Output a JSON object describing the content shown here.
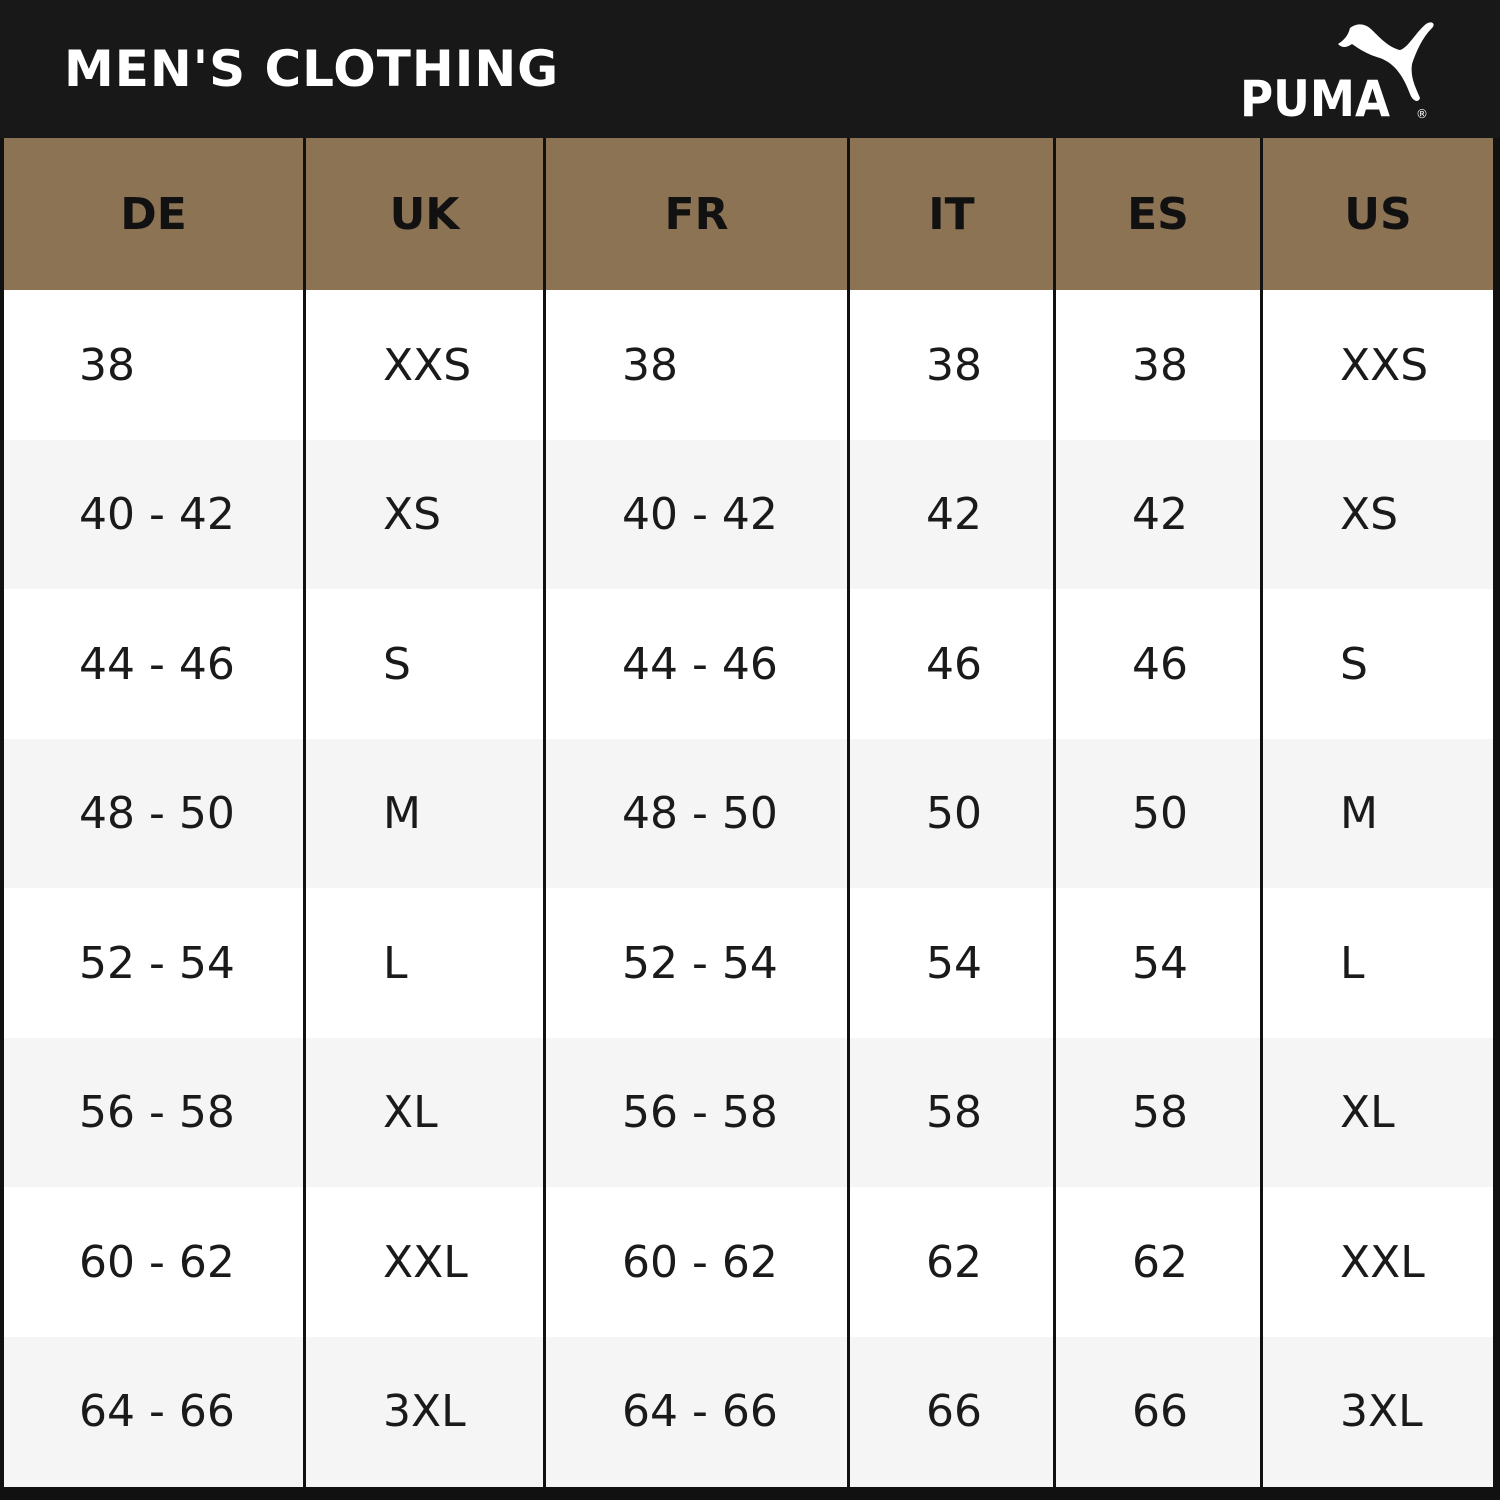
{
  "header": {
    "title": "MEN'S CLOTHING",
    "logo_text": "PUMA"
  },
  "colors": {
    "header_bg": "#181818",
    "column_header_bg": "#8c7354",
    "row_odd": "#ffffff",
    "row_even": "#f5f5f5",
    "grid_lines": "#111111"
  },
  "table": {
    "columns": [
      "DE",
      "UK",
      "FR",
      "IT",
      "ES",
      "US"
    ],
    "rows": [
      [
        "38",
        "XXS",
        "38",
        "38",
        "38",
        "XXS"
      ],
      [
        "40 - 42",
        "XS",
        "40 - 42",
        "42",
        "42",
        "XS"
      ],
      [
        "44 - 46",
        "S",
        "44 - 46",
        "46",
        "46",
        "S"
      ],
      [
        "48 - 50",
        "M",
        "48 - 50",
        "50",
        "50",
        "M"
      ],
      [
        "52 - 54",
        "L",
        "52 - 54",
        "54",
        "54",
        "L"
      ],
      [
        "56 - 58",
        "XL",
        "56 - 58",
        "58",
        "58",
        "XL"
      ],
      [
        "60 - 62",
        "XXL",
        "60 - 62",
        "62",
        "62",
        "XXL"
      ],
      [
        "64 - 66",
        "3XL",
        "64 - 66",
        "66",
        "66",
        "3XL"
      ]
    ]
  }
}
